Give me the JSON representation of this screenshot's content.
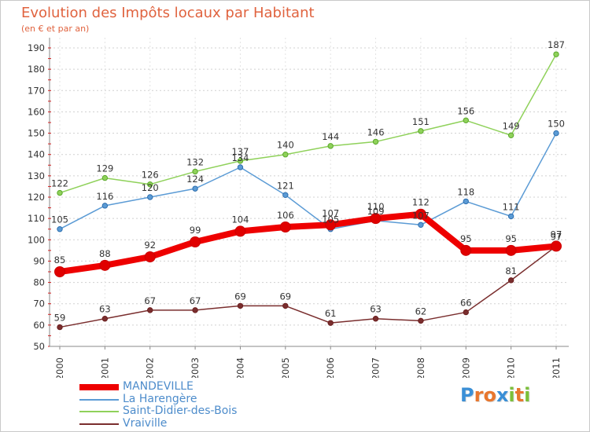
{
  "header": {
    "title": "Evolution des Impôts locaux par Habitant",
    "subtitle": "(en € et par an)"
  },
  "logo": {
    "letters": [
      "P",
      "r",
      "o",
      "x",
      "i",
      "t",
      "i"
    ],
    "colors": [
      "#3a8fd6",
      "#e8762d",
      "#e8762d",
      "#3a8fd6",
      "#7bbf3a",
      "#e8762d",
      "#7bbf3a"
    ]
  },
  "chart_data": {
    "type": "line",
    "title": "Evolution des Impôts locaux par Habitant",
    "subtitle": "(en € et par an)",
    "xlabel": "",
    "ylabel": "",
    "ylim": [
      50,
      190
    ],
    "yticks": [
      50,
      60,
      70,
      80,
      90,
      100,
      110,
      120,
      130,
      140,
      150,
      160,
      170,
      180,
      190
    ],
    "categories": [
      "2000",
      "2001",
      "2002",
      "2003",
      "2004",
      "2005",
      "2006",
      "2007",
      "2008",
      "2009",
      "2010",
      "2011"
    ],
    "grid": "horizontal dashed",
    "legend_position": "bottom-left",
    "series": [
      {
        "name": "MANDEVILLE",
        "color": "#ee0000",
        "marker": "#cc0000",
        "emphasis": true,
        "values": [
          85,
          88,
          92,
          99,
          104,
          106,
          107,
          110,
          112,
          95,
          95,
          97
        ]
      },
      {
        "name": "La Harengère",
        "color": "#5b9bd5",
        "marker": "#2e6faf",
        "emphasis": false,
        "values": [
          105,
          116,
          120,
          124,
          134,
          121,
          105,
          109,
          107,
          118,
          111,
          150
        ]
      },
      {
        "name": "Saint-Didier-des-Bois",
        "color": "#8fd15a",
        "marker": "#5aa82b",
        "emphasis": false,
        "values": [
          122,
          129,
          126,
          132,
          137,
          140,
          144,
          146,
          151,
          156,
          149,
          187
        ]
      },
      {
        "name": "Vraiville",
        "color": "#7a2e2e",
        "marker": "#6b1e1e",
        "emphasis": false,
        "values": [
          59,
          63,
          67,
          67,
          69,
          69,
          61,
          63,
          62,
          66,
          81,
          97
        ]
      }
    ]
  }
}
